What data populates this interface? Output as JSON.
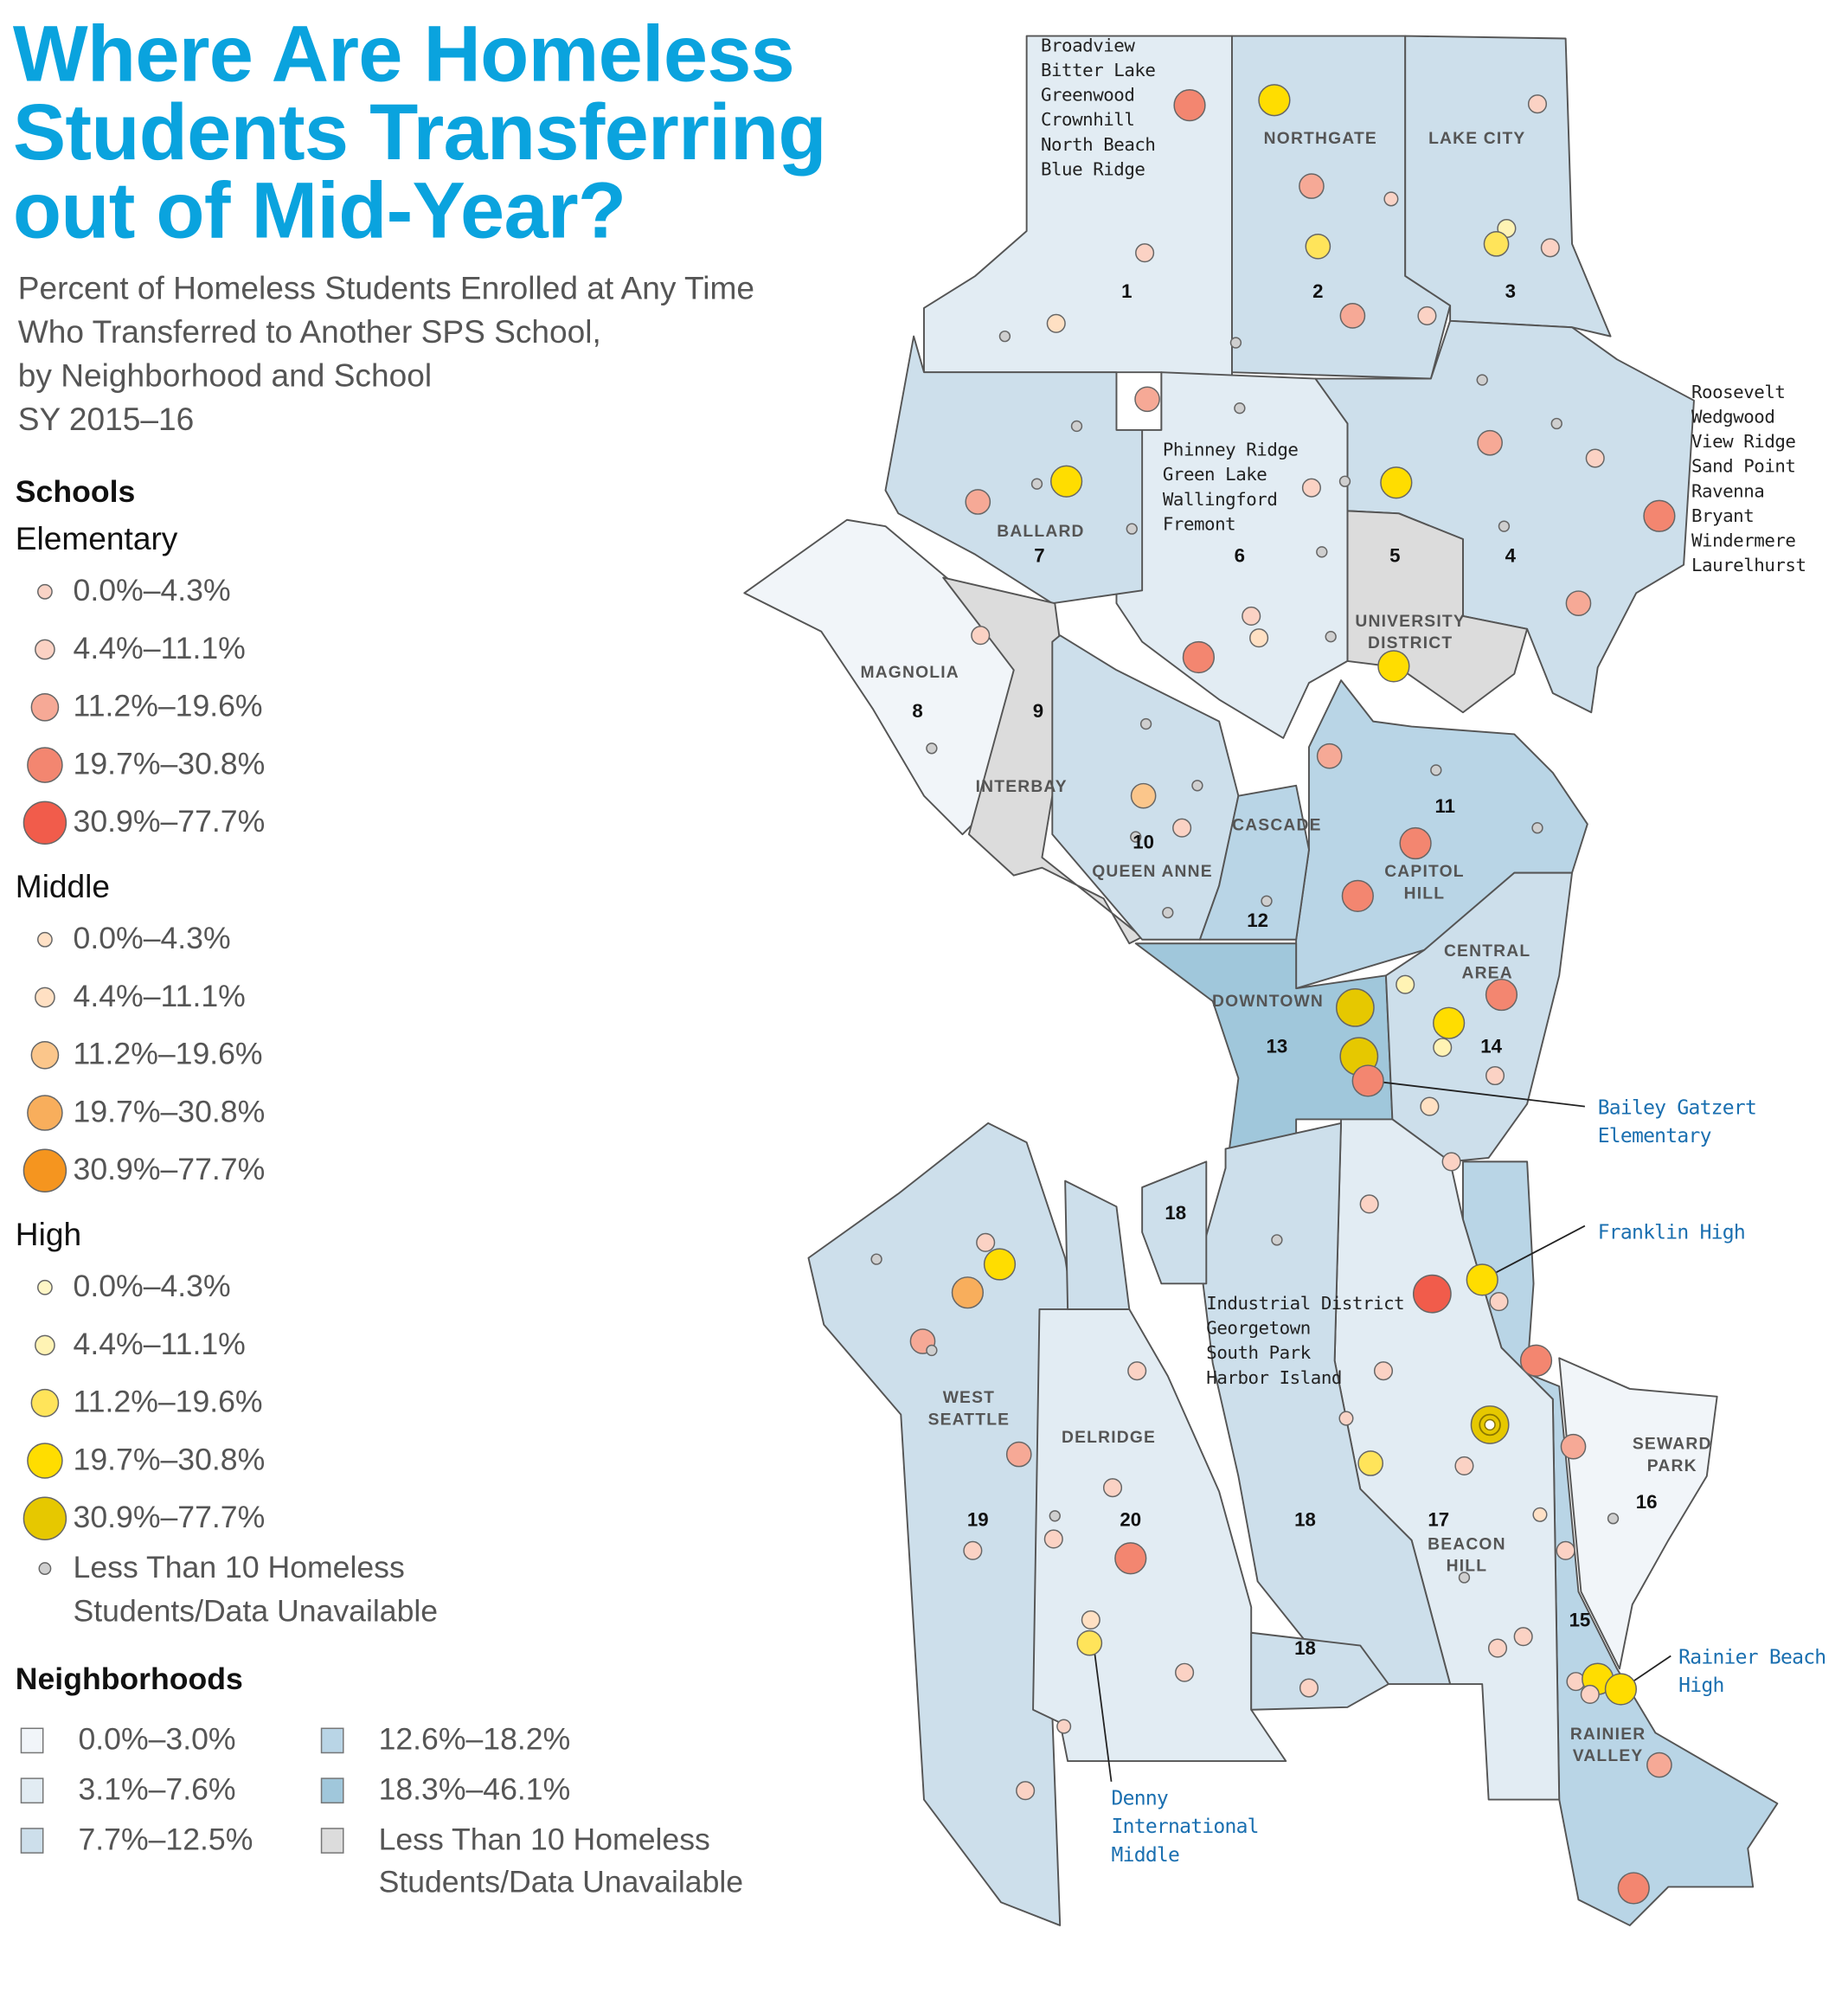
{
  "title": [
    "Where Are Homeless",
    "Students Transferring",
    "out of Mid-Year?"
  ],
  "subtitle": [
    "Percent of Homeless Students Enrolled at Any Time",
    "Who Transferred to Another SPS School,",
    "by Neighborhood and School",
    "SY 2015–16"
  ],
  "legend": {
    "schools_heading": "Schools",
    "bins": [
      "0.0%–4.3%",
      "4.4%–11.1%",
      "11.2%–19.6%",
      "19.7%–30.8%",
      "30.9%–77.7%"
    ],
    "groups": [
      {
        "name": "Elementary",
        "colors": [
          "#f9d3c6",
          "#fbd2c4",
          "#f6a996",
          "#f38670",
          "#f15c4b"
        ]
      },
      {
        "name": "Middle",
        "colors": [
          "#ffe1c6",
          "#ffe0c3",
          "#fbc68b",
          "#f8ae5c",
          "#f5951f"
        ]
      },
      {
        "name": "High",
        "colors": [
          "#fff6c6",
          "#fff3b4",
          "#ffe45a",
          "#ffdd00",
          "#e6c800"
        ]
      }
    ],
    "no_data_school": {
      "label": [
        "Less Than 10 Homeless",
        "Students/Data Unavailable"
      ],
      "color": "#cfcfcf"
    },
    "neighborhoods_heading": "Neighborhoods",
    "neighborhood_bins": [
      {
        "label": "0.0%–3.0%",
        "color": "#f1f5f9"
      },
      {
        "label": "12.6%–18.2%",
        "color": "#b9d5e6"
      },
      {
        "label": "3.1%–7.6%",
        "color": "#e2ecf3"
      },
      {
        "label": "18.3%–46.1%",
        "color": "#a0c7db"
      },
      {
        "label": "7.7%–12.5%",
        "color": "#cddfeb"
      },
      {
        "label": "Less Than 10 Homeless Students/Data Unavailable",
        "lines": [
          "Less Than 10 Homeless",
          "Students/Data Unavailable"
        ],
        "color": "#dcdcdc"
      }
    ]
  },
  "map": {
    "numbers": [
      "1",
      "2",
      "3",
      "4",
      "5",
      "6",
      "7",
      "8",
      "9",
      "10",
      "11",
      "12",
      "13",
      "14",
      "15",
      "16",
      "17",
      "18",
      "18",
      "18",
      "19",
      "20"
    ],
    "names": [
      [
        "NORTHGATE"
      ],
      [
        "LAKE CITY"
      ],
      [
        "BALLARD"
      ],
      [
        "UNIVERSITY",
        "DISTRICT"
      ],
      [
        "MAGNOLIA"
      ],
      [
        "INTERBAY"
      ],
      [
        "CASCADE"
      ],
      [
        "QUEEN ANNE"
      ],
      [
        "CAPITOL",
        "HILL"
      ],
      [
        "CENTRAL",
        "AREA"
      ],
      [
        "DOWNTOWN"
      ],
      [
        "WEST",
        "SEATTLE"
      ],
      [
        "DELRIDGE"
      ],
      [
        "SEWARD",
        "PARK"
      ],
      [
        "BEACON",
        "HILL"
      ],
      [
        "RAINIER",
        "VALLEY"
      ]
    ],
    "area_lists": [
      [
        "Broadview",
        "Bitter Lake",
        "Greenwood",
        "Crownhill",
        "North Beach",
        "Blue Ridge"
      ],
      [
        "Phinney Ridge",
        "Green Lake",
        "Wallingford",
        "Fremont"
      ],
      [
        "Roosevelt",
        "Wedgwood",
        "View Ridge",
        "Sand Point",
        "Ravenna",
        "Bryant",
        "Windermere",
        "Laurelhurst"
      ],
      [
        "Industrial District",
        "Georgetown",
        "South Park",
        "Harbor Island"
      ]
    ],
    "callouts": [
      [
        "Bailey Gatzert",
        "Elementary"
      ],
      [
        "Franklin High"
      ],
      [
        "Rainier Beach",
        "High"
      ],
      [
        "Denny",
        "International",
        "Middle"
      ]
    ],
    "callout_color": "#1a6fb0",
    "neighborhood_classes": {
      "1": "b1",
      "2": "b2",
      "3": "b2",
      "4": "b2",
      "5": "na",
      "6": "b1",
      "7": "b2",
      "8": "b0",
      "9": "na",
      "10": "b2",
      "11": "b3",
      "12": "b3",
      "13": "b4",
      "14": "b2",
      "15": "b3",
      "16": "b0",
      "17": "b1",
      "18": "b2",
      "19": "b2",
      "20": "b1"
    },
    "schools": [
      [
        "e",
        3
      ],
      [
        "h",
        3
      ],
      [
        "e",
        1
      ],
      [
        "e",
        2
      ],
      [
        "e",
        0
      ],
      [
        "h",
        2
      ],
      [
        "h",
        1
      ],
      [
        "h",
        2
      ],
      [
        "e",
        1
      ],
      [
        "e",
        1
      ],
      [
        "m",
        1
      ],
      [
        "g",
        0
      ],
      [
        "e",
        2
      ],
      [
        "e",
        1
      ],
      [
        "g",
        0
      ],
      [
        "e",
        2
      ],
      [
        "g",
        0
      ],
      [
        "g",
        0
      ],
      [
        "g",
        0
      ],
      [
        "g",
        0
      ],
      [
        "e",
        2
      ],
      [
        "e",
        1
      ],
      [
        "e",
        1
      ],
      [
        "g",
        0
      ],
      [
        "g",
        0
      ],
      [
        "h",
        3
      ],
      [
        "h",
        3
      ],
      [
        "e",
        2
      ],
      [
        "g",
        0
      ],
      [
        "g",
        0
      ],
      [
        "e",
        3
      ],
      [
        "g",
        0
      ],
      [
        "e",
        2
      ],
      [
        "e",
        1
      ],
      [
        "m",
        1
      ],
      [
        "g",
        0
      ],
      [
        "e",
        1
      ],
      [
        "e",
        3
      ],
      [
        "h",
        3
      ],
      [
        "g",
        0
      ],
      [
        "e",
        2
      ],
      [
        "g",
        0
      ],
      [
        "g",
        0
      ],
      [
        "m",
        2
      ],
      [
        "g",
        0
      ],
      [
        "e",
        1
      ],
      [
        "g",
        0
      ],
      [
        "g",
        0
      ],
      [
        "e",
        3
      ],
      [
        "g",
        0
      ],
      [
        "e",
        3
      ],
      [
        "g",
        0
      ],
      [
        "h",
        1
      ],
      [
        "h",
        4
      ],
      [
        "h",
        3
      ],
      [
        "e",
        3
      ],
      [
        "h",
        4
      ],
      [
        "h",
        1
      ],
      [
        "e",
        1
      ],
      [
        "e",
        3
      ],
      [
        "m",
        1
      ],
      [
        "e",
        1
      ],
      [
        "e",
        1
      ],
      [
        "g",
        0
      ],
      [
        "e",
        1
      ],
      [
        "g",
        0
      ],
      [
        "h",
        3
      ],
      [
        "e",
        4
      ],
      [
        "h",
        3
      ],
      [
        "e",
        1
      ],
      [
        "m",
        3
      ],
      [
        "e",
        2
      ],
      [
        "g",
        0
      ],
      [
        "e",
        1
      ],
      [
        "e",
        3
      ],
      [
        "e",
        1
      ],
      [
        "h",
        4
      ],
      [
        "e",
        0
      ],
      [
        "e",
        2
      ],
      [
        "e",
        2
      ],
      [
        "h",
        2
      ],
      [
        "e",
        1
      ],
      [
        "e",
        1
      ],
      [
        "m",
        0
      ],
      [
        "g",
        0
      ],
      [
        "g",
        0
      ],
      [
        "e",
        1
      ],
      [
        "e",
        3
      ],
      [
        "e",
        1
      ],
      [
        "e",
        1
      ],
      [
        "g",
        0
      ],
      [
        "m",
        1
      ],
      [
        "h",
        2
      ],
      [
        "e",
        1
      ],
      [
        "e",
        1
      ],
      [
        "e",
        1
      ],
      [
        "e",
        1
      ],
      [
        "e",
        1
      ],
      [
        "h",
        3
      ],
      [
        "e",
        1
      ],
      [
        "h",
        3
      ],
      [
        "e",
        0
      ],
      [
        "e",
        2
      ],
      [
        "e",
        1
      ],
      [
        "e",
        3
      ]
    ]
  }
}
